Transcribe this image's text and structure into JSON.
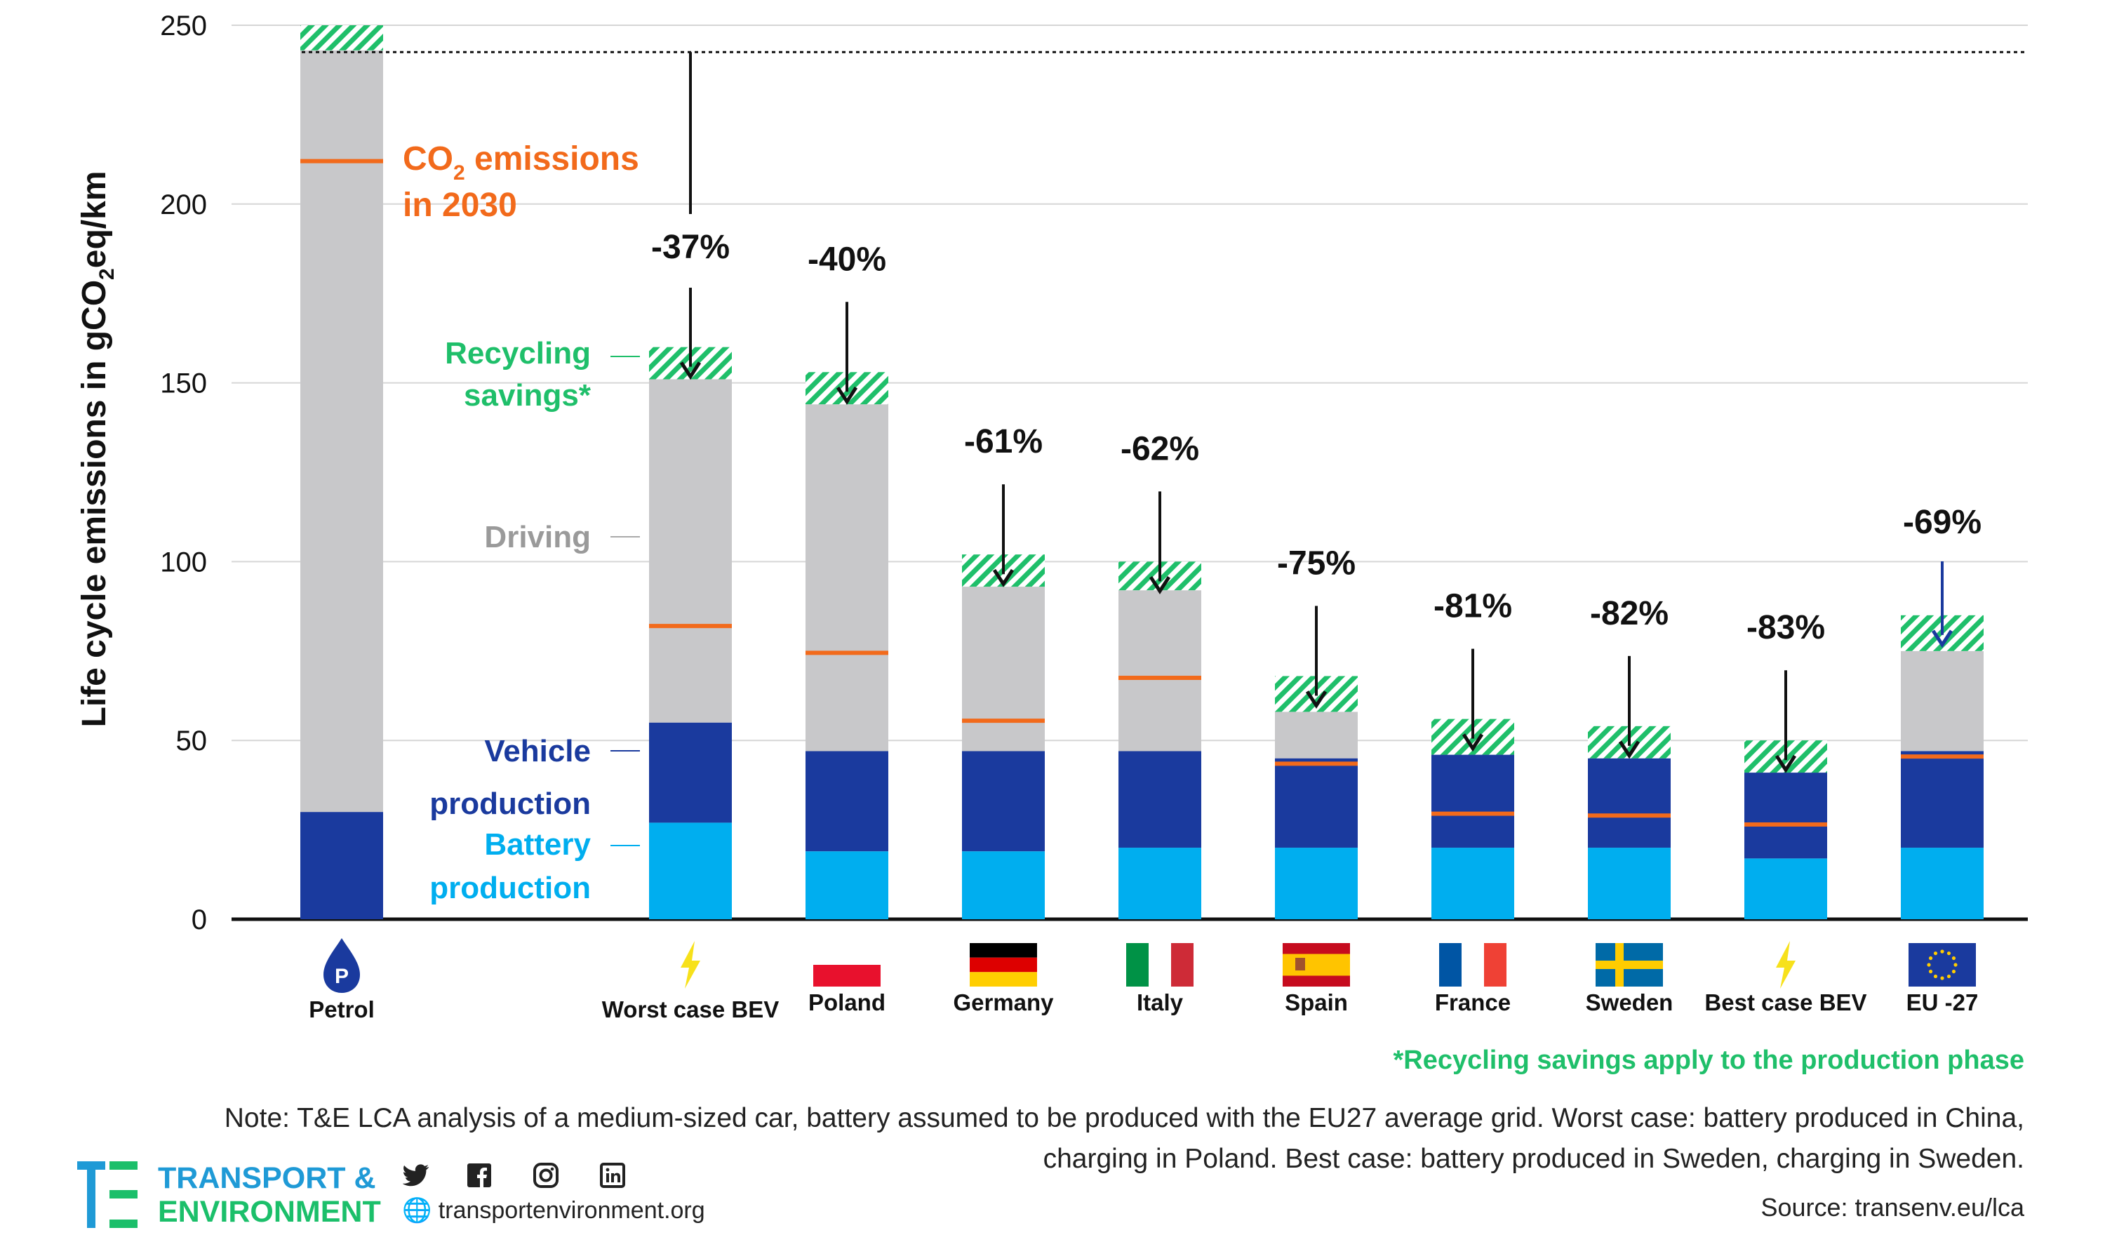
{
  "chart_data": {
    "type": "bar",
    "stacked": true,
    "ylabel": "Life  cycle emissions in gCO₂eq/km",
    "ylim": [
      0,
      250
    ],
    "yticks": [
      0,
      50,
      100,
      150,
      200,
      250
    ],
    "grid": true,
    "categories": [
      "Petrol",
      "Worst case BEV",
      "Poland",
      "Germany",
      "Italy",
      "Spain",
      "France",
      "Sweden",
      "Best case BEV",
      "EU -27"
    ],
    "series": [
      {
        "name": "Battery production",
        "color": "#00aeef",
        "values": [
          0,
          27,
          19,
          19,
          20,
          20,
          20,
          20,
          17,
          20
        ]
      },
      {
        "name": "Vehicle production",
        "color": "#1a3a9e",
        "values": [
          30,
          28,
          28,
          28,
          27,
          25,
          26,
          25,
          24,
          27
        ]
      },
      {
        "name": "Driving",
        "color": "#c8c8ca",
        "values": [
          213,
          96,
          97,
          46,
          45,
          13,
          0,
          0,
          0,
          28
        ]
      },
      {
        "name": "Recycling savings*",
        "color": "#1fbf6a",
        "values": [
          7,
          9,
          9,
          9,
          8,
          10,
          10,
          9,
          9,
          10
        ]
      }
    ],
    "co2_2030": [
      212,
      82,
      74.5,
      55.5,
      67.5,
      43.5,
      29.5,
      29,
      26.5,
      45.5
    ],
    "reductions": [
      "",
      "-37%",
      "-40%",
      "-61%",
      "-62%",
      "-75%",
      "-81%",
      "-82%",
      "-83%",
      "-69%"
    ],
    "reference_line": 242.5,
    "annotations": {
      "co2_line1": "CO",
      "co2_sub": "2",
      "co2_line1_rest": " emissions",
      "co2_line2": "in 2030",
      "recycling_1": "Recycling",
      "recycling_2": "savings*",
      "driving": "Driving",
      "vehicle_1": "Vehicle",
      "vehicle_2": "production",
      "battery_1": "Battery",
      "battery_2": "production"
    },
    "colors": {
      "battery": "#00aeef",
      "vehicle": "#1a3a9e",
      "driving": "#c8c8ca",
      "recycling": "#1fbf6a",
      "co2": "#f26a1b",
      "recycling_text": "#1fbf6a",
      "driving_text": "#9a9a9a",
      "vehicle_text": "#1a3a9e",
      "battery_text": "#00aeef"
    },
    "icons": [
      "petrol-drop-icon",
      "lightning-icon",
      "poland-flag-icon",
      "germany-flag-icon",
      "italy-flag-icon",
      "spain-flag-icon",
      "france-flag-icon",
      "sweden-flag-icon",
      "lightning-icon",
      "eu-flag-icon"
    ]
  },
  "footer": {
    "recycling_note": "*Recycling savings apply to the production phase",
    "note_line1": "Note: T&E LCA analysis of a medium-sized car, battery assumed to be produced with the EU27 average grid. Worst case: battery produced in China,",
    "note_line2": "charging in Poland. Best case: battery produced in Sweden, charging in Sweden.",
    "source": "Source: transenv.eu/lca",
    "logo_line1": "TRANSPORT &",
    "logo_line2": "ENVIRONMENT",
    "website": "transportenvironment.org",
    "social_icons": [
      "twitter-icon",
      "facebook-icon",
      "instagram-icon",
      "linkedin-icon"
    ]
  }
}
